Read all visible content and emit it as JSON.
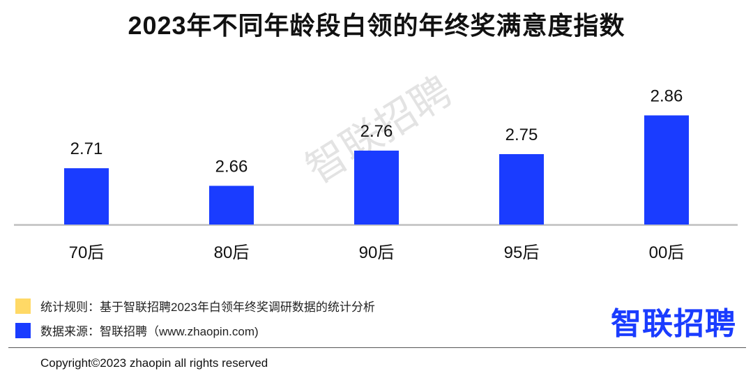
{
  "chart_data": {
    "type": "bar",
    "title": "2023年不同年龄段白领的年终奖满意度指数",
    "categories": [
      "70后",
      "80后",
      "90后",
      "95后",
      "00后"
    ],
    "values": [
      2.71,
      2.66,
      2.76,
      2.75,
      2.86
    ],
    "data_labels": [
      "2.71",
      "2.66",
      "2.76",
      "2.75",
      "2.86"
    ],
    "bar_color": "#1a3cff",
    "grid": false
  },
  "legend": [
    {
      "text": "统计规则：基于智联招聘2023年白领年终奖调研数据的统计分析",
      "color": "#ffd966"
    },
    {
      "text": "数据来源：智联招聘（www.zhaopin.com)",
      "color": "#1a3cff"
    }
  ],
  "logo": "智联招聘",
  "watermark": "智联招聘",
  "copyright": "Copyright©2023 zhaopin all rights reserved"
}
